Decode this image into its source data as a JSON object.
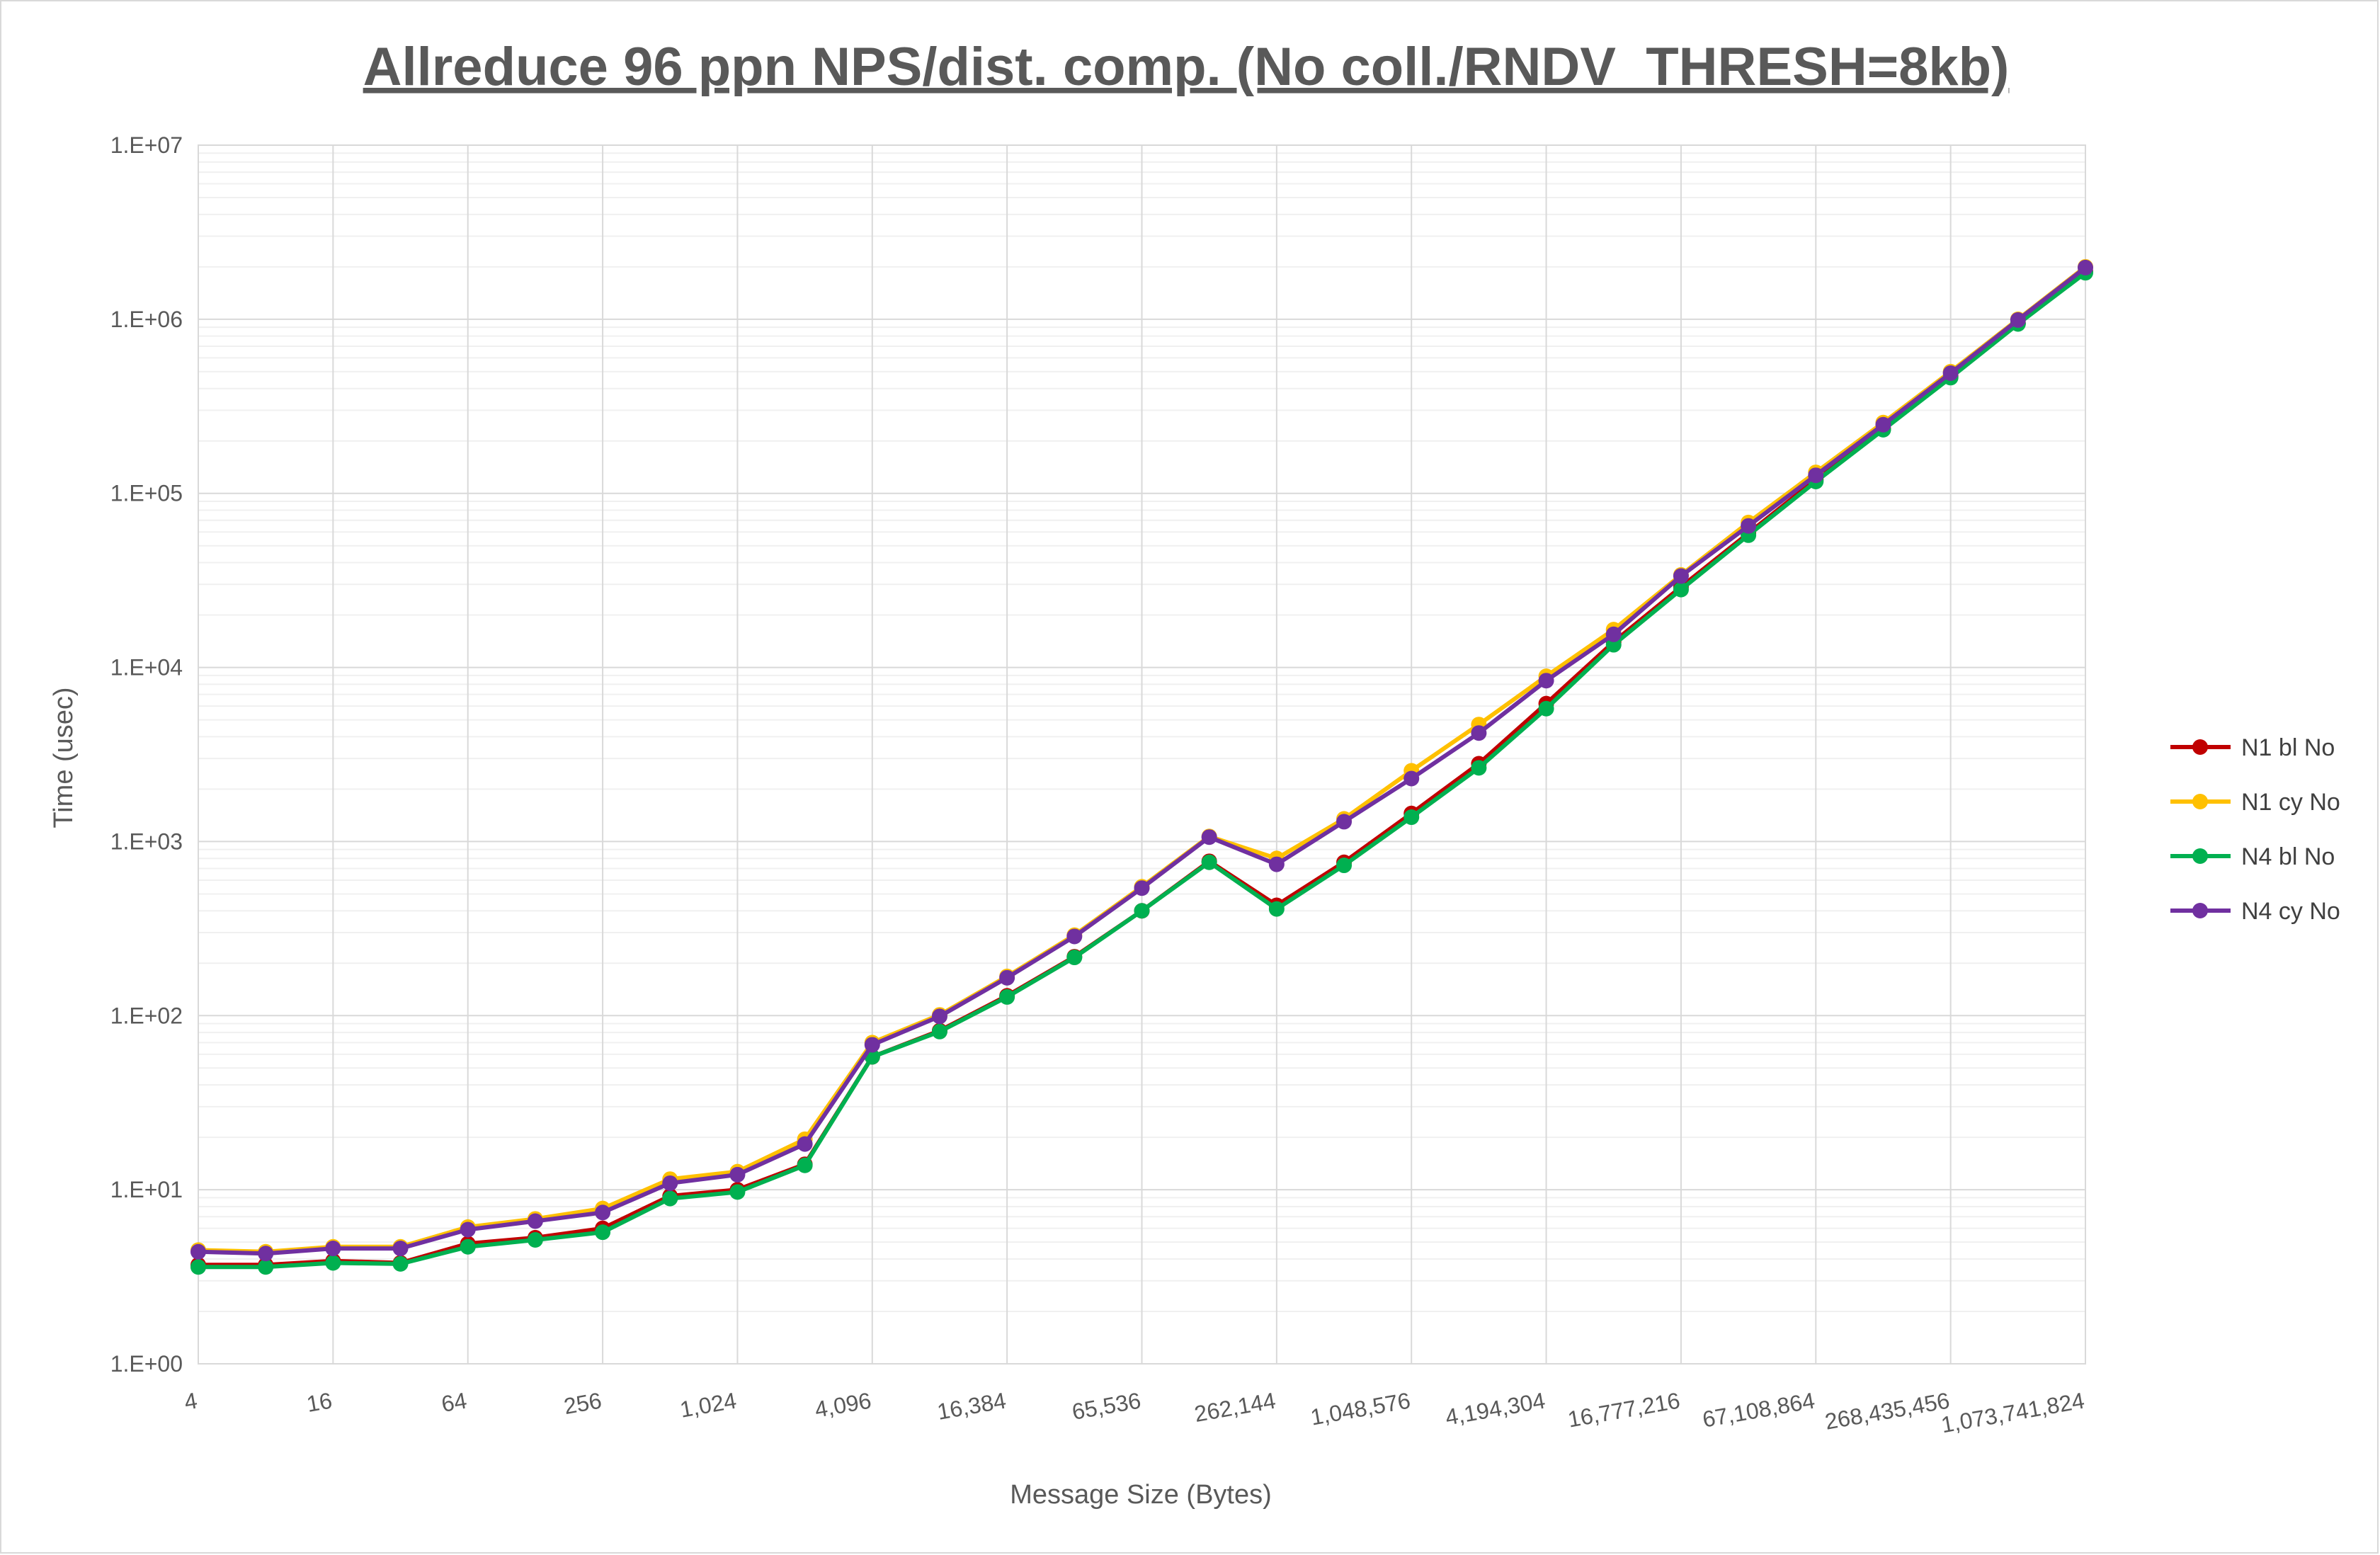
{
  "chart_data": {
    "type": "line",
    "title": "Allreduce 96 ppn NPS/dist. comp. (No coll./RNDV_THRESH=8kb)",
    "xlabel": "Message Size (Bytes)",
    "ylabel": "Time (usec)",
    "yscale": "log",
    "ylim": [
      1,
      10000000
    ],
    "y_tick_values": [
      1,
      10,
      100,
      1000,
      10000,
      100000,
      1000000,
      10000000
    ],
    "y_tick_labels": [
      "1.E+00",
      "1.E+01",
      "1.E+02",
      "1.E+03",
      "1.E+04",
      "1.E+05",
      "1.E+06",
      "1.E+07"
    ],
    "x_tick_labels": [
      "4",
      "16",
      "64",
      "256",
      "1,024",
      "4,096",
      "16,384",
      "65,536",
      "262,144",
      "1,048,576",
      "4,194,304",
      "16,777,216",
      "67,108,864",
      "268,435,456",
      "1,073,741,824"
    ],
    "x": [
      4,
      8,
      16,
      32,
      64,
      128,
      256,
      512,
      1024,
      2048,
      4096,
      8192,
      16384,
      32768,
      65536,
      131072,
      262144,
      524288,
      1048576,
      2097152,
      4194304,
      8388608,
      16777216,
      33554432,
      67108864,
      134217728,
      268435456,
      536870912,
      1073741824
    ],
    "grid": true,
    "legend_position": "right",
    "series": [
      {
        "name": "N1 bl No",
        "color": "#c00000",
        "values": [
          3.7,
          3.7,
          3.9,
          3.8,
          4.9,
          5.3,
          6.0,
          9.2,
          10.0,
          14.0,
          58,
          82,
          130,
          218,
          400,
          770,
          430,
          760,
          1450,
          2800,
          6200,
          14000,
          29000,
          59000,
          120000,
          235000,
          470000,
          950000,
          1880000
        ]
      },
      {
        "name": "N1 cy No",
        "color": "#ffc000",
        "values": [
          4.5,
          4.4,
          4.7,
          4.7,
          6.1,
          6.8,
          7.8,
          11.5,
          12.7,
          19.5,
          70,
          101,
          168,
          290,
          550,
          1070,
          800,
          1350,
          2550,
          4700,
          8900,
          16500,
          34000,
          68000,
          132000,
          255000,
          500000,
          1000000,
          2000000
        ]
      },
      {
        "name": "N4 bl No",
        "color": "#00b050",
        "values": [
          3.6,
          3.6,
          3.8,
          3.75,
          4.7,
          5.15,
          5.7,
          8.9,
          9.7,
          13.8,
          58,
          81,
          128,
          216,
          400,
          760,
          410,
          730,
          1380,
          2650,
          5800,
          13500,
          28000,
          57500,
          117000,
          232000,
          462000,
          940000,
          1850000
        ]
      },
      {
        "name": "N4 cy No",
        "color": "#7030a0",
        "values": [
          4.4,
          4.3,
          4.6,
          4.6,
          5.9,
          6.6,
          7.4,
          10.9,
          12.2,
          18.3,
          68,
          99,
          165,
          285,
          540,
          1060,
          740,
          1300,
          2300,
          4200,
          8400,
          15500,
          33500,
          65000,
          127000,
          248000,
          490000,
          990000,
          1980000
        ]
      }
    ]
  }
}
